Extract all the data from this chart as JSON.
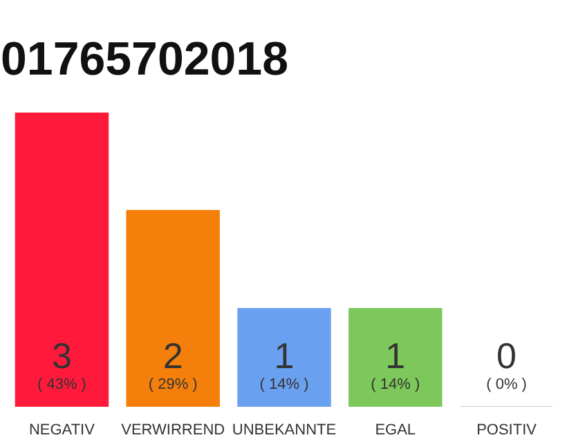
{
  "chart_data": {
    "type": "bar",
    "title": "01765702018",
    "categories": [
      "NEGATIV",
      "VERWIRREND",
      "UNBEKANNTE",
      "EGAL",
      "POSITIV"
    ],
    "values": [
      3,
      2,
      1,
      1,
      0
    ],
    "colors": [
      "#ff1a3c",
      "#f57f0b",
      "#6aa0f0",
      "#7dc85a",
      "#cccccc"
    ],
    "data_labels": true,
    "annotations": [
      "( 43% )",
      "( 29% )",
      "( 14% )",
      "( 14% )",
      "( 0% )"
    ],
    "tick_labels": "x"
  }
}
